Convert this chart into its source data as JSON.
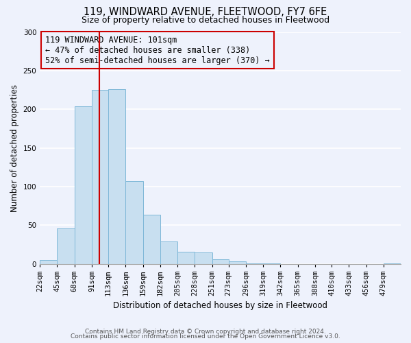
{
  "title": "119, WINDWARD AVENUE, FLEETWOOD, FY7 6FE",
  "subtitle": "Size of property relative to detached houses in Fleetwood",
  "xlabel": "Distribution of detached houses by size in Fleetwood",
  "ylabel": "Number of detached properties",
  "bin_labels": [
    "22sqm",
    "45sqm",
    "68sqm",
    "91sqm",
    "113sqm",
    "136sqm",
    "159sqm",
    "182sqm",
    "205sqm",
    "228sqm",
    "251sqm",
    "273sqm",
    "296sqm",
    "319sqm",
    "342sqm",
    "365sqm",
    "388sqm",
    "410sqm",
    "433sqm",
    "456sqm",
    "479sqm"
  ],
  "bar_values": [
    5,
    46,
    204,
    225,
    226,
    107,
    64,
    29,
    16,
    15,
    6,
    3,
    1,
    1,
    0,
    0,
    0,
    0,
    0,
    0,
    1
  ],
  "bar_color": "#c8dff0",
  "bar_edge_color": "#7fb8d8",
  "vline_x": 101,
  "bin_edges_sqm": [
    22,
    45,
    68,
    91,
    113,
    136,
    159,
    182,
    205,
    228,
    251,
    273,
    296,
    319,
    342,
    365,
    388,
    410,
    433,
    456,
    479,
    502
  ],
  "ylim": [
    0,
    300
  ],
  "yticks": [
    0,
    50,
    100,
    150,
    200,
    250,
    300
  ],
  "annotation_title": "119 WINDWARD AVENUE: 101sqm",
  "annotation_line1": "← 47% of detached houses are smaller (338)",
  "annotation_line2": "52% of semi-detached houses are larger (370) →",
  "footer_line1": "Contains HM Land Registry data © Crown copyright and database right 2024.",
  "footer_line2": "Contains public sector information licensed under the Open Government Licence v3.0.",
  "background_color": "#eef2fc",
  "plot_bg_color": "#eef2fc",
  "grid_color": "#ffffff",
  "vline_color": "#cc0000",
  "annotation_box_edge_color": "#cc0000",
  "title_fontsize": 10.5,
  "subtitle_fontsize": 9,
  "axis_label_fontsize": 8.5,
  "tick_fontsize": 7.5,
  "annotation_fontsize": 8.5,
  "footer_fontsize": 6.5
}
